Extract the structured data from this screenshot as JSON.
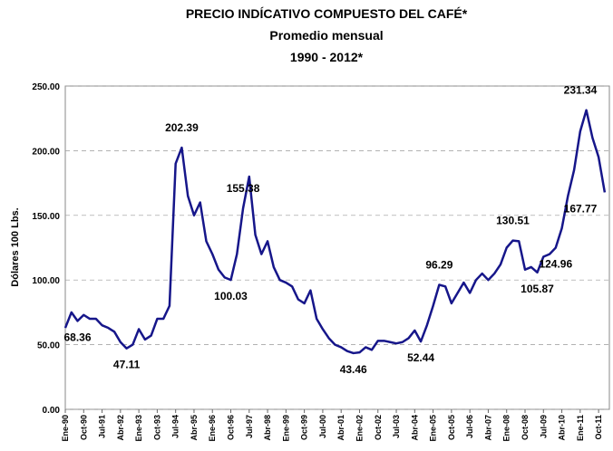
{
  "chart_data": {
    "type": "line",
    "title": "PRECIO INDÍCATIVO COMPUESTO DEL CAFÉ*",
    "subtitle": [
      "Promedio mensual",
      "1990 - 2012*"
    ],
    "y_label": "Dólares 100 Lbs.",
    "color": "#16168a",
    "grid": true,
    "ylim": [
      0,
      250
    ],
    "yticks": [
      {
        "value": 0,
        "label": "0.00"
      },
      {
        "value": 50,
        "label": "50.00"
      },
      {
        "value": 100,
        "label": "100.00"
      },
      {
        "value": 150,
        "label": "150.00"
      },
      {
        "value": 200,
        "label": "200.00"
      },
      {
        "value": 250,
        "label": "250.00"
      }
    ],
    "categories": [
      "Ene-90",
      null,
      null,
      "Oct-90",
      null,
      null,
      "Jul-91",
      null,
      null,
      "Abr-92",
      null,
      null,
      "Ene-93",
      null,
      null,
      "Oct-93",
      null,
      null,
      "Jul-94",
      null,
      null,
      "Abr-95",
      null,
      null,
      "Ene-96",
      null,
      null,
      "Oct-96",
      null,
      null,
      "Jul-97",
      null,
      null,
      "Abr-98",
      null,
      null,
      "Ene-99",
      null,
      null,
      "Oct-99",
      null,
      null,
      "Jul-00",
      null,
      null,
      "Abr-01",
      null,
      null,
      "Ene-02",
      null,
      null,
      "Oct-02",
      null,
      null,
      "Jul-03",
      null,
      null,
      "Abr-04",
      null,
      null,
      "Ene-05",
      null,
      null,
      "Oct-05",
      null,
      null,
      "Jul-06",
      null,
      null,
      "Abr-07",
      null,
      null,
      "Ene-08",
      null,
      null,
      "Oct-08",
      null,
      null,
      "Jul-09",
      null,
      null,
      "Abr-10",
      null,
      null,
      "Ene-11",
      null,
      null,
      "Oct-11",
      null
    ],
    "values": [
      63,
      75,
      68.36,
      73,
      70,
      70,
      65,
      63,
      60,
      52,
      47.11,
      50,
      62,
      54,
      57,
      70,
      70,
      80,
      190,
      202.39,
      165,
      150,
      160,
      130,
      120,
      108,
      102,
      100.03,
      120,
      155.38,
      180,
      135,
      120,
      130,
      110,
      100,
      98,
      95,
      85,
      82,
      92,
      70,
      62,
      55,
      50,
      48,
      45,
      43.46,
      44,
      48,
      46,
      53,
      53,
      52,
      51,
      52,
      55,
      61,
      52.44,
      65,
      80,
      96.29,
      95,
      82,
      90,
      98,
      90,
      100,
      105,
      100,
      105,
      112,
      125,
      130.51,
      130,
      108,
      110,
      105.87,
      118,
      120,
      124.96,
      140,
      165,
      185,
      215,
      231.34,
      210,
      195,
      167.77
    ],
    "value_labels": [
      null,
      null,
      "68.36",
      null,
      null,
      null,
      null,
      null,
      null,
      null,
      "47.11",
      null,
      null,
      null,
      null,
      null,
      null,
      null,
      null,
      "202.39",
      null,
      null,
      null,
      null,
      null,
      null,
      null,
      "100.03",
      null,
      "155.38",
      null,
      null,
      null,
      null,
      null,
      null,
      null,
      null,
      null,
      null,
      null,
      null,
      null,
      null,
      null,
      null,
      null,
      "43.46",
      null,
      null,
      null,
      null,
      null,
      null,
      null,
      null,
      null,
      null,
      "52.44",
      null,
      null,
      "96.29",
      null,
      null,
      null,
      null,
      null,
      null,
      null,
      null,
      null,
      null,
      null,
      "130.51",
      null,
      null,
      null,
      "105.87",
      null,
      null,
      "124.96",
      null,
      null,
      null,
      null,
      "231.34",
      null,
      null,
      "167.77"
    ]
  }
}
